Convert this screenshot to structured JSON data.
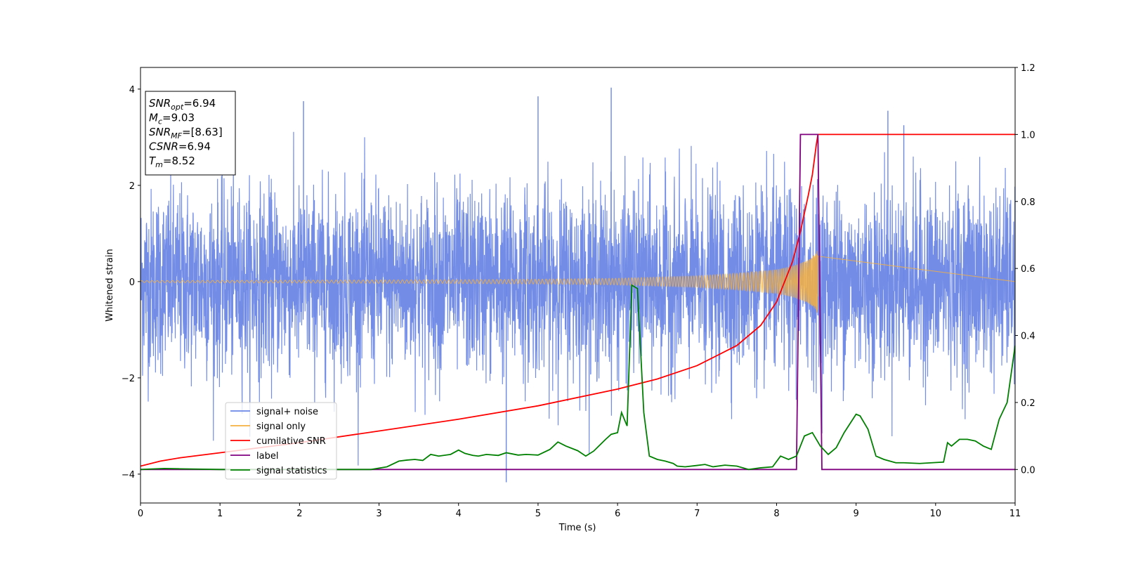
{
  "chart_data": {
    "type": "line",
    "xlabel": "Time (s)",
    "ylabel": "Whitened strain",
    "xlim": [
      0,
      11
    ],
    "ylim_left": [
      -4.6,
      4.45
    ],
    "ylim_right": [
      -0.1,
      1.2
    ],
    "x_ticks": [
      "0",
      "1",
      "2",
      "3",
      "4",
      "5",
      "6",
      "7",
      "8",
      "9",
      "10",
      "11"
    ],
    "y_ticks_left": [
      "−4",
      "−2",
      "0",
      "2",
      "4"
    ],
    "y_ticks_right": [
      "0.0",
      "0.2",
      "0.4",
      "0.6",
      "0.8",
      "1.0",
      "1.2"
    ],
    "y_tick_values_left": [
      -4,
      -2,
      0,
      2,
      4
    ],
    "y_tick_values_right": [
      0.0,
      0.2,
      0.4,
      0.6,
      0.8,
      1.0,
      1.2
    ],
    "legend_position": "lower-left",
    "info_box": {
      "lines": [
        {
          "var": "SNR",
          "sub": "opt",
          "val": "=6.94"
        },
        {
          "var": "M",
          "sub": "c",
          "val": "=9.03"
        },
        {
          "var": "SNR",
          "sub": "MF",
          "val": "=[8.63]"
        },
        {
          "var": "CSNR",
          "sub": "",
          "val": "=6.94"
        },
        {
          "var": "T",
          "sub": "m",
          "val": "=8.52"
        }
      ]
    },
    "series": [
      {
        "name": "signal+ noise",
        "axis": "left",
        "color": "#6b87e6",
        "description_range": [
          -4.2,
          4.0
        ],
        "extreme_spikes": [
          [
            4.6,
            -4.17
          ],
          [
            5.92,
            4.03
          ],
          [
            2.05,
            3.75
          ],
          [
            5.0,
            3.85
          ],
          [
            9.4,
            3.55
          ],
          [
            9.6,
            3.25
          ]
        ]
      },
      {
        "name": "signal only",
        "axis": "left",
        "color": "#f5b041",
        "envelope": {
          "x": [
            0,
            2,
            4,
            5,
            6,
            7,
            7.5,
            8,
            8.2,
            8.4,
            8.5,
            8.52
          ],
          "y": [
            0.02,
            0.03,
            0.04,
            0.05,
            0.07,
            0.12,
            0.17,
            0.25,
            0.32,
            0.45,
            0.6,
            0.7
          ]
        }
      },
      {
        "name": "cumilative SNR",
        "axis": "right",
        "color": "#ff0000",
        "x": [
          0,
          0.25,
          0.5,
          1,
          2,
          3,
          4,
          5,
          6,
          6.5,
          7,
          7.5,
          7.8,
          8.0,
          8.2,
          8.3,
          8.4,
          8.45,
          8.5,
          8.52,
          8.53,
          11
        ],
        "y": [
          0.01,
          0.025,
          0.035,
          0.05,
          0.08,
          0.115,
          0.15,
          0.19,
          0.24,
          0.27,
          0.31,
          0.37,
          0.43,
          0.5,
          0.62,
          0.71,
          0.82,
          0.88,
          0.97,
          1.0,
          1.0,
          1.0
        ]
      },
      {
        "name": "label",
        "axis": "right",
        "color": "#800080",
        "x": [
          0,
          8.25,
          8.3,
          8.32,
          8.5,
          8.52,
          8.57,
          11
        ],
        "y": [
          0,
          0,
          1.0,
          1.0,
          1.0,
          1.0,
          0,
          0
        ]
      },
      {
        "name": "signal statistics",
        "axis": "right",
        "color": "#008000",
        "x": [
          0,
          0.3,
          0.5,
          1,
          1.5,
          2,
          2.5,
          2.9,
          3.1,
          3.25,
          3.35,
          3.45,
          3.55,
          3.65,
          3.75,
          3.9,
          4.0,
          4.08,
          4.18,
          4.25,
          4.35,
          4.5,
          4.6,
          4.75,
          4.85,
          5.0,
          5.15,
          5.25,
          5.35,
          5.5,
          5.6,
          5.7,
          5.85,
          5.92,
          6.0,
          6.05,
          6.12,
          6.18,
          6.25,
          6.33,
          6.4,
          6.5,
          6.6,
          6.7,
          6.75,
          6.85,
          7.0,
          7.1,
          7.2,
          7.35,
          7.5,
          7.65,
          7.8,
          7.95,
          8.05,
          8.15,
          8.25,
          8.35,
          8.45,
          8.55,
          8.65,
          8.75,
          8.85,
          9.0,
          9.05,
          9.15,
          9.25,
          9.35,
          9.5,
          9.6,
          9.8,
          9.95,
          10.1,
          10.15,
          10.2,
          10.3,
          10.4,
          10.5,
          10.6,
          10.7,
          10.8,
          10.9,
          11.0
        ],
        "y": [
          0,
          0.003,
          0.002,
          0.0,
          0.0,
          0.0,
          0.0,
          0.0,
          0.008,
          0.025,
          0.028,
          0.03,
          0.027,
          0.045,
          0.04,
          0.045,
          0.058,
          0.048,
          0.042,
          0.04,
          0.045,
          0.042,
          0.05,
          0.043,
          0.045,
          0.043,
          0.06,
          0.082,
          0.07,
          0.056,
          0.04,
          0.055,
          0.09,
          0.105,
          0.11,
          0.17,
          0.13,
          0.55,
          0.54,
          0.17,
          0.04,
          0.03,
          0.025,
          0.018,
          0.01,
          0.008,
          0.012,
          0.015,
          0.008,
          0.013,
          0.01,
          0.0,
          0.005,
          0.008,
          0.04,
          0.03,
          0.04,
          0.1,
          0.11,
          0.07,
          0.045,
          0.065,
          0.11,
          0.165,
          0.16,
          0.12,
          0.04,
          0.03,
          0.02,
          0.02,
          0.018,
          0.02,
          0.022,
          0.08,
          0.07,
          0.09,
          0.09,
          0.085,
          0.07,
          0.06,
          0.15,
          0.2,
          0.37
        ]
      }
    ]
  }
}
